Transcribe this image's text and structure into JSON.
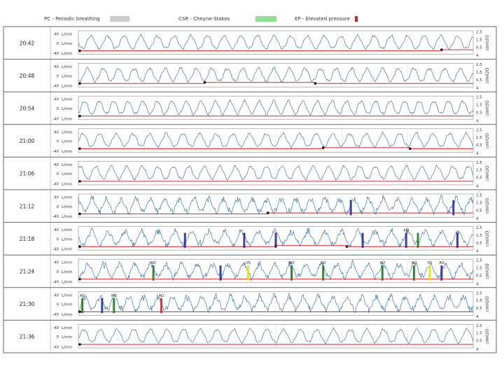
{
  "legend": [
    {
      "label": "PC - Periodic breathing",
      "color": "#cccccc"
    },
    {
      "label": "CSR - Cheyne-Stokes",
      "color": "#90e090"
    },
    {
      "label": "EP - Elevated pressure",
      "color": "#e02020"
    }
  ],
  "left_axis_ticks": [
    "40",
    "0",
    "-40"
  ],
  "left_axis_unit": "L/min",
  "right_axis_ticks": [
    "2.5",
    "1.5",
    "0.5",
    "4"
  ],
  "right_axis_label": "cmH2O",
  "chart_data": {
    "type": "line",
    "title": "",
    "rows": [
      {
        "time": "20:42",
        "events": [],
        "pressure_breaks": [
          0.92
        ]
      },
      {
        "time": "20:48",
        "events": [],
        "pressure_breaks": [
          0.32,
          0.6
        ]
      },
      {
        "time": "20:54",
        "events": [],
        "pressure_breaks": []
      },
      {
        "time": "21:00",
        "events": [],
        "pressure_breaks": [
          0.62,
          0.84
        ]
      },
      {
        "time": "21:06",
        "events": [],
        "pressure_breaks": []
      },
      {
        "time": "21:12",
        "events": [
          {
            "pos": 0.69,
            "label": "",
            "color": "#2a2a9a"
          },
          {
            "pos": 0.95,
            "label": "",
            "color": "#2a2a9a"
          }
        ],
        "pressure_breaks": [
          0.48
        ]
      },
      {
        "time": "21:18",
        "events": [
          {
            "pos": 0.27,
            "label": "",
            "color": "#2a2a9a"
          },
          {
            "pos": 0.42,
            "label": "",
            "color": "#2a2a9a"
          },
          {
            "pos": 0.5,
            "label": "",
            "color": "#2a2a9a"
          },
          {
            "pos": 0.72,
            "label": "",
            "color": "#2a2a9a"
          },
          {
            "pos": 0.83,
            "label": "AO",
            "color": "#2a2a9a"
          },
          {
            "pos": 0.86,
            "label": "",
            "color": "#1f7a1f"
          },
          {
            "pos": 0.96,
            "label": "",
            "color": "#2a2a9a"
          }
        ],
        "pressure_breaks": [
          0.5,
          0.68
        ]
      },
      {
        "time": "21:24",
        "events": [
          {
            "pos": 0.19,
            "label": "AO",
            "color": "#1f7a1f"
          },
          {
            "pos": 0.36,
            "label": "",
            "color": "#2a2a9a"
          },
          {
            "pos": 0.43,
            "label": "VS",
            "color": "#e6e600"
          },
          {
            "pos": 0.54,
            "label": "AO",
            "color": "#1f7a1f"
          },
          {
            "pos": 0.62,
            "label": "AO",
            "color": "#1f7a1f"
          },
          {
            "pos": 0.77,
            "label": "AO",
            "color": "#1f7a1f"
          },
          {
            "pos": 0.85,
            "label": "AO",
            "color": "#1f7a1f"
          },
          {
            "pos": 0.89,
            "label": "VS",
            "color": "#e6e600"
          },
          {
            "pos": 0.92,
            "label": "AO",
            "color": "#2a2a9a"
          }
        ],
        "pressure_breaks": []
      },
      {
        "time": "21:30",
        "events": [
          {
            "pos": 0.01,
            "label": "AO",
            "color": "#1f7a1f"
          },
          {
            "pos": 0.06,
            "label": "",
            "color": "#2a2a9a"
          },
          {
            "pos": 0.09,
            "label": "RO",
            "color": "#1f7a1f"
          },
          {
            "pos": 0.21,
            "label": "AO",
            "color": "#e02020"
          }
        ],
        "pressure_breaks": []
      },
      {
        "time": "21:36",
        "events": [],
        "pressure_breaks": []
      }
    ]
  }
}
